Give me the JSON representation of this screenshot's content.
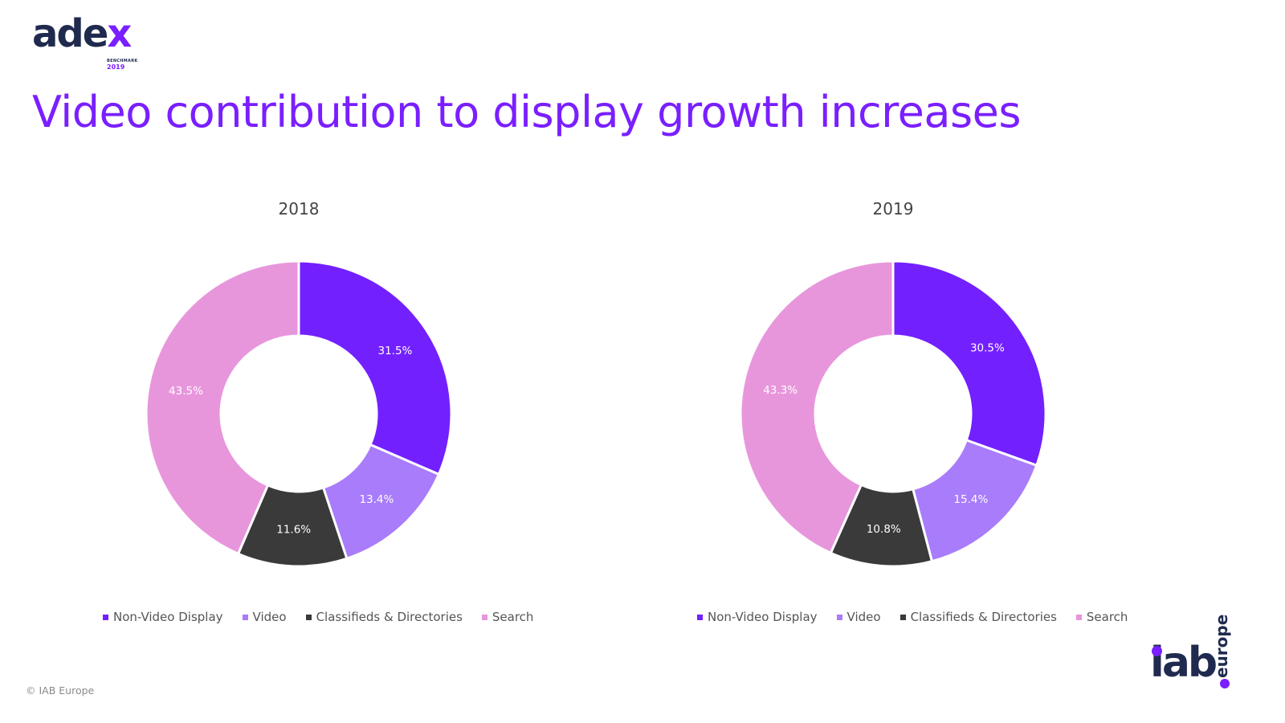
{
  "logo": {
    "word_main": "ade",
    "word_x": "x",
    "line1": "BENCHMARK",
    "line2": "2019"
  },
  "title": "Video contribution to display growth increases",
  "footer": "© IAB Europe",
  "iab_logo": {
    "word": "iab",
    "suffix": "europe"
  },
  "colors": {
    "title": "#7a1fff",
    "non_video_display": "#7320ff",
    "video": "#a87cfb",
    "classifieds": "#3a3a3a",
    "search": "#e896dc"
  },
  "chart_data": [
    {
      "type": "pie",
      "title": "2018",
      "categories": [
        "Non-Video Display",
        "Video",
        "Classifieds & Directories",
        "Search"
      ],
      "values": [
        31.5,
        13.4,
        11.6,
        43.5
      ],
      "labels": [
        "31.5%",
        "13.4%",
        "11.6%",
        "43.5%"
      ],
      "legend": "bottom"
    },
    {
      "type": "pie",
      "title": "2019",
      "categories": [
        "Non-Video Display",
        "Video",
        "Classifieds & Directories",
        "Search"
      ],
      "values": [
        30.5,
        15.4,
        10.8,
        43.3
      ],
      "labels": [
        "30.5%",
        "15.4%",
        "10.8%",
        "43.3%"
      ],
      "legend": "bottom"
    }
  ]
}
